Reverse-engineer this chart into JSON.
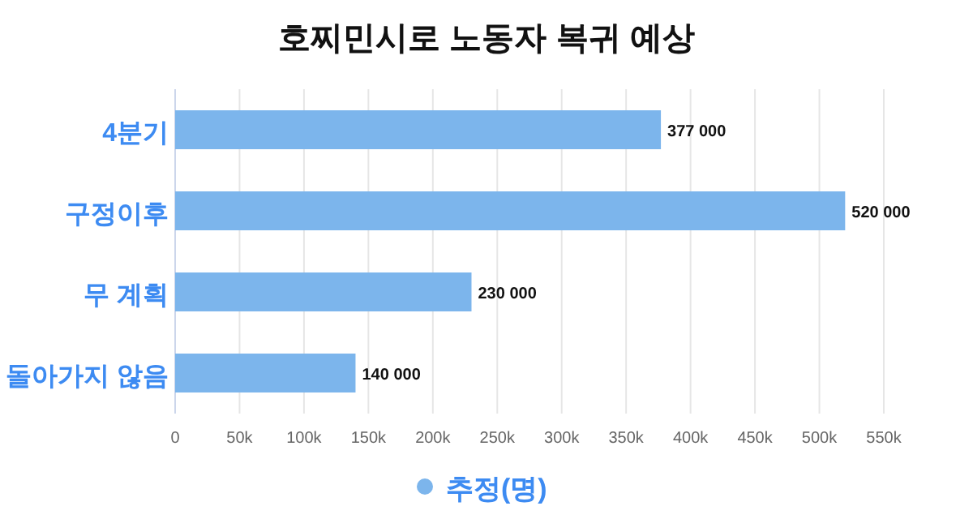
{
  "chart_data": {
    "type": "bar",
    "orientation": "horizontal",
    "title": "호찌민시로 노동자 복귀 예상",
    "categories": [
      "4분기",
      "구정이후",
      "무 계획",
      "돌아가지 않음"
    ],
    "series": [
      {
        "name": "추정(명)",
        "color": "#7cb5ec",
        "values": [
          377000,
          520000,
          230000,
          140000
        ],
        "value_labels": [
          "377 000",
          "520 000",
          "230 000",
          "140 000"
        ]
      }
    ],
    "xlim": [
      0,
      550000
    ],
    "xticks": [
      0,
      {
        "value": 50000,
        "label": "50k"
      },
      {
        "value": 100000,
        "label": "100k"
      },
      {
        "value": 150000,
        "label": "150k"
      },
      {
        "value": 200000,
        "label": "200k"
      },
      {
        "value": 250000,
        "label": "250k"
      },
      {
        "value": 300000,
        "label": "300k"
      },
      {
        "value": 350000,
        "label": "350k"
      },
      {
        "value": 400000,
        "label": "400k"
      },
      {
        "value": 450000,
        "label": "450k"
      },
      {
        "value": 500000,
        "label": "500k"
      },
      {
        "value": 550000,
        "label": "550k"
      }
    ],
    "grid": "x",
    "legend": "bottom"
  }
}
